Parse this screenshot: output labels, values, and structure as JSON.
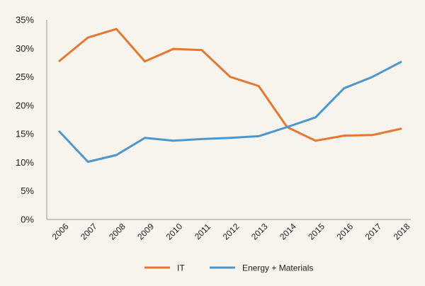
{
  "chart_data": {
    "type": "line",
    "categories": [
      "2006",
      "2007",
      "2008",
      "2009",
      "2010",
      "2011",
      "2012",
      "2013",
      "2014",
      "2015",
      "2016",
      "2017",
      "2018"
    ],
    "series": [
      {
        "name": "IT",
        "color": "#e5782e",
        "values": [
          27.8,
          31.9,
          33.4,
          27.7,
          29.9,
          29.7,
          25.0,
          23.4,
          16.2,
          13.8,
          14.7,
          14.8,
          15.9
        ]
      },
      {
        "name": "Energy + Materials",
        "color": "#4d97cf",
        "values": [
          15.4,
          10.1,
          11.3,
          14.3,
          13.8,
          14.1,
          14.3,
          14.6,
          16.2,
          17.9,
          23.0,
          25.0,
          27.6
        ]
      }
    ],
    "ylim": [
      0,
      35
    ],
    "y_ticks": [
      "0%",
      "5%",
      "10%",
      "15%",
      "20%",
      "25%",
      "30%",
      "35%"
    ],
    "y_tick_values": [
      0,
      5,
      10,
      15,
      20,
      25,
      30,
      35
    ],
    "grid": false,
    "legend_position": "bottom-center",
    "axis_color": "#9a9a9a"
  }
}
